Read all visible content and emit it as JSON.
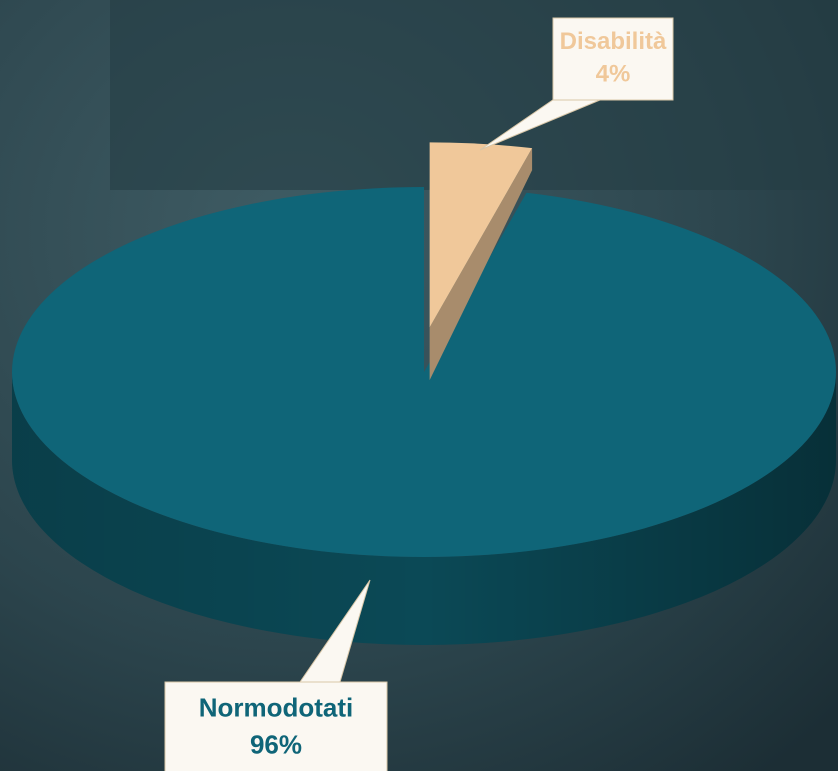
{
  "chart_data": {
    "type": "pie",
    "view": "3d",
    "categories": [
      "Normodotati",
      "Disabilità"
    ],
    "values": [
      96,
      4
    ],
    "value_labels": [
      "96%",
      "4%"
    ],
    "colors": [
      "#0f6578",
      "#f0c89a"
    ],
    "exploded": [
      false,
      true
    ]
  }
}
